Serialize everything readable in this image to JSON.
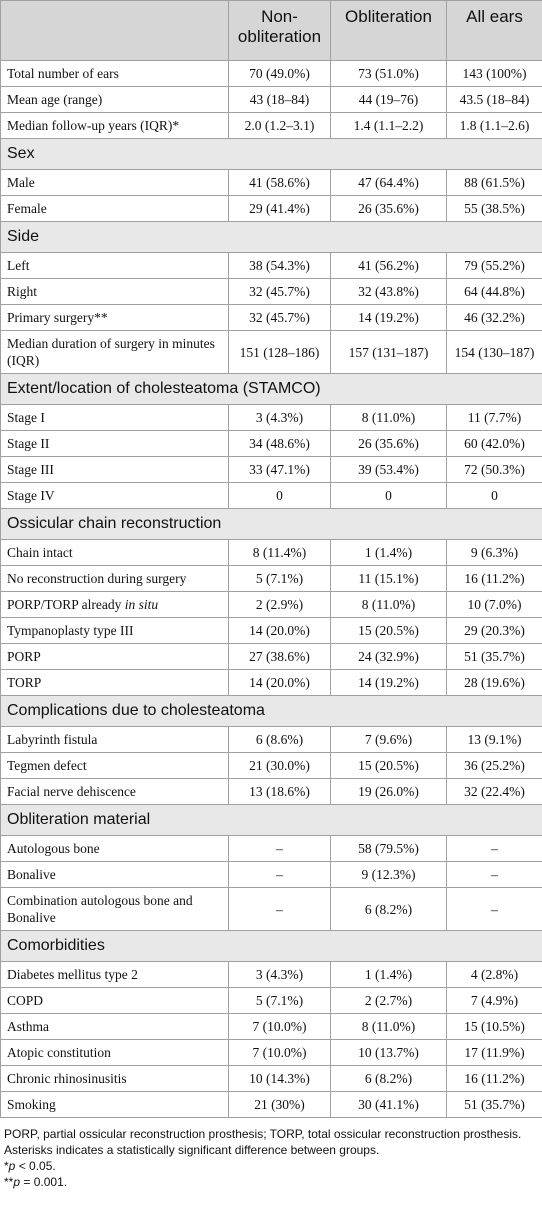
{
  "table": {
    "header": [
      "",
      "Non-obliteration",
      "Obliteration",
      "All ears"
    ],
    "rows": [
      {
        "cells": [
          "Total number of ears",
          "70 (49.0%)",
          "73 (51.0%)",
          "143 (100%)"
        ]
      },
      {
        "cells": [
          "Mean age (range)",
          "43 (18–84)",
          "44 (19–76)",
          "43.5 (18–84)"
        ]
      },
      {
        "cells": [
          "Median follow-up years (IQR)*",
          "2.0 (1.2–3.1)",
          "1.4 (1.1–2.2)",
          "1.8 (1.1–2.6)"
        ]
      },
      {
        "section": "Sex"
      },
      {
        "cells": [
          "Male",
          "41 (58.6%)",
          "47 (64.4%)",
          "88 (61.5%)"
        ]
      },
      {
        "cells": [
          "Female",
          "29 (41.4%)",
          "26 (35.6%)",
          "55 (38.5%)"
        ]
      },
      {
        "section": "Side"
      },
      {
        "cells": [
          "Left",
          "38 (54.3%)",
          "41 (56.2%)",
          "79 (55.2%)"
        ]
      },
      {
        "cells": [
          "Right",
          "32 (45.7%)",
          "32 (43.8%)",
          "64 (44.8%)"
        ]
      },
      {
        "cells": [
          "Primary surgery**",
          "32 (45.7%)",
          "14 (19.2%)",
          "46 (32.2%)"
        ]
      },
      {
        "cells": [
          "Median duration of surgery in minutes (IQR)",
          "151 (128–186)",
          "157 (131–187)",
          "154 (130–187)"
        ]
      },
      {
        "section": "Extent/location of cholesteatoma (STAMCO)"
      },
      {
        "cells": [
          "Stage I",
          "3 (4.3%)",
          "8 (11.0%)",
          "11 (7.7%)"
        ]
      },
      {
        "cells": [
          "Stage II",
          "34 (48.6%)",
          "26 (35.6%)",
          "60 (42.0%)"
        ]
      },
      {
        "cells": [
          "Stage III",
          "33 (47.1%)",
          "39 (53.4%)",
          "72 (50.3%)"
        ]
      },
      {
        "cells": [
          "Stage IV",
          "0",
          "0",
          "0"
        ]
      },
      {
        "section": "Ossicular chain reconstruction"
      },
      {
        "cells": [
          "Chain intact",
          "8 (11.4%)",
          "1 (1.4%)",
          "9 (6.3%)"
        ]
      },
      {
        "cells": [
          "No reconstruction during surgery",
          "5 (7.1%)",
          "11 (15.1%)",
          "16 (11.2%)"
        ]
      },
      {
        "cells": [
          [
            "PORP/TORP already",
            "in situ"
          ],
          "2 (2.9%)",
          "8 (11.0%)",
          "10 (7.0%)"
        ]
      },
      {
        "cells": [
          "Tympanoplasty type III",
          "14 (20.0%)",
          "15 (20.5%)",
          "29 (20.3%)"
        ]
      },
      {
        "cells": [
          "PORP",
          "27 (38.6%)",
          "24 (32.9%)",
          "51 (35.7%)"
        ]
      },
      {
        "cells": [
          "TORP",
          "14 (20.0%)",
          "14 (19.2%)",
          "28 (19.6%)"
        ]
      },
      {
        "section": "Complications due to cholesteatoma"
      },
      {
        "cells": [
          "Labyrinth fistula",
          "6 (8.6%)",
          "7 (9.6%)",
          "13 (9.1%)"
        ]
      },
      {
        "cells": [
          "Tegmen defect",
          "21 (30.0%)",
          "15 (20.5%)",
          "36 (25.2%)"
        ]
      },
      {
        "cells": [
          "Facial nerve dehiscence",
          "13 (18.6%)",
          "19 (26.0%)",
          "32 (22.4%)"
        ]
      },
      {
        "section": "Obliteration material"
      },
      {
        "cells": [
          "Autologous bone",
          "–",
          "58 (79.5%)",
          "–"
        ]
      },
      {
        "cells": [
          "Bonalive",
          "–",
          "9 (12.3%)",
          "–"
        ]
      },
      {
        "cells": [
          "Combination autologous bone and Bonalive",
          "–",
          "6 (8.2%)",
          "–"
        ]
      },
      {
        "section": "Comorbidities"
      },
      {
        "cells": [
          "Diabetes mellitus type 2",
          "3 (4.3%)",
          "1 (1.4%)",
          "4 (2.8%)"
        ]
      },
      {
        "cells": [
          "COPD",
          "5 (7.1%)",
          "2 (2.7%)",
          "7 (4.9%)"
        ]
      },
      {
        "cells": [
          "Asthma",
          "7 (10.0%)",
          "8 (11.0%)",
          "15 (10.5%)"
        ]
      },
      {
        "cells": [
          "Atopic constitution",
          "7 (10.0%)",
          "10 (13.7%)",
          "17 (11.9%)"
        ]
      },
      {
        "cells": [
          "Chronic rhinosinusitis",
          "10 (14.3%)",
          "6 (8.2%)",
          "16 (11.2%)"
        ]
      },
      {
        "cells": [
          "Smoking",
          "21 (30%)",
          "30 (41.1%)",
          "51 (35.7%)"
        ]
      }
    ]
  },
  "notes": [
    [
      "PORP, partial ossicular reconstruction prosthesis; TORP, total ossicular reconstruction prosthesis. Asterisks indicates a statistically significant difference between groups."
    ],
    [
      "*",
      "p",
      " < 0.05."
    ],
    [
      "**",
      "p",
      " = 0.001."
    ]
  ]
}
